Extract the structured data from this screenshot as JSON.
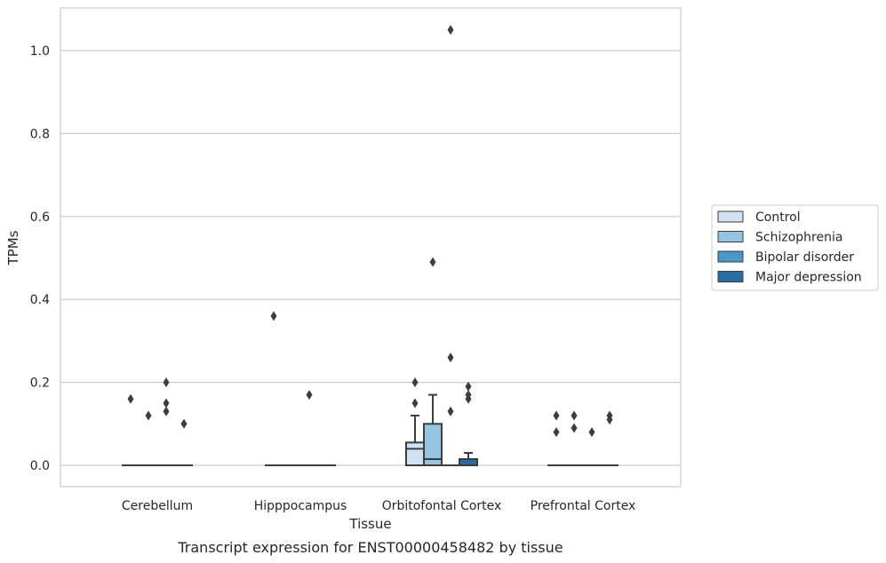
{
  "chart_data": {
    "type": "box",
    "xlabel": "Tissue",
    "ylabel": "TPMs",
    "caption": "Transcript expression for ENST00000458482 by tissue",
    "ylim": [
      -0.05,
      1.1
    ],
    "yticks": [
      0.0,
      0.2,
      0.4,
      0.6,
      0.8,
      1.0
    ],
    "ytick_labels": [
      "0.0",
      "0.2",
      "0.4",
      "0.6",
      "0.8",
      "1.0"
    ],
    "grid": true,
    "legend_position": "right",
    "categories": [
      "Cerebellum",
      "Hipppocampus",
      "Orbitofontal Cortex",
      "Prefrontal Cortex"
    ],
    "series": [
      {
        "name": "Control",
        "color": "#d0e1f2",
        "boxes": [
          {
            "q1": 0.0,
            "median": 0.0,
            "q3": 0.0,
            "whislo": 0.0,
            "whishi": 0.0,
            "fliers": [
              0.16
            ]
          },
          {
            "q1": 0.0,
            "median": 0.0,
            "q3": 0.0,
            "whislo": 0.0,
            "whishi": 0.0,
            "fliers": [
              0.36
            ]
          },
          {
            "q1": 0.0,
            "median": 0.04,
            "q3": 0.055,
            "whislo": 0.0,
            "whishi": 0.12,
            "fliers": [
              0.15,
              0.2
            ]
          },
          {
            "q1": 0.0,
            "median": 0.0,
            "q3": 0.0,
            "whislo": 0.0,
            "whishi": 0.0,
            "fliers": [
              0.08,
              0.12
            ]
          }
        ]
      },
      {
        "name": "Schizophrenia",
        "color": "#94c4df",
        "boxes": [
          {
            "q1": 0.0,
            "median": 0.0,
            "q3": 0.0,
            "whislo": 0.0,
            "whishi": 0.0,
            "fliers": [
              0.12
            ]
          },
          {
            "q1": 0.0,
            "median": 0.0,
            "q3": 0.0,
            "whislo": 0.0,
            "whishi": 0.0,
            "fliers": []
          },
          {
            "q1": 0.0,
            "median": 0.015,
            "q3": 0.1,
            "whislo": 0.0,
            "whishi": 0.17,
            "fliers": [
              0.49
            ]
          },
          {
            "q1": 0.0,
            "median": 0.0,
            "q3": 0.0,
            "whislo": 0.0,
            "whishi": 0.0,
            "fliers": [
              0.09,
              0.12
            ]
          }
        ]
      },
      {
        "name": "Bipolar disorder",
        "color": "#4a98c9",
        "boxes": [
          {
            "q1": 0.0,
            "median": 0.0,
            "q3": 0.0,
            "whislo": 0.0,
            "whishi": 0.0,
            "fliers": [
              0.13,
              0.15,
              0.2
            ]
          },
          {
            "q1": 0.0,
            "median": 0.0,
            "q3": 0.0,
            "whislo": 0.0,
            "whishi": 0.0,
            "fliers": [
              0.17
            ]
          },
          {
            "q1": 0.0,
            "median": 0.0,
            "q3": 0.0,
            "whislo": 0.0,
            "whishi": 0.0,
            "fliers": [
              0.13,
              0.26,
              1.05
            ]
          },
          {
            "q1": 0.0,
            "median": 0.0,
            "q3": 0.0,
            "whislo": 0.0,
            "whishi": 0.0,
            "fliers": [
              0.08
            ]
          }
        ]
      },
      {
        "name": "Major depression",
        "color": "#2b6ba4",
        "boxes": [
          {
            "q1": 0.0,
            "median": 0.0,
            "q3": 0.0,
            "whislo": 0.0,
            "whishi": 0.0,
            "fliers": [
              0.1
            ]
          },
          {
            "q1": 0.0,
            "median": 0.0,
            "q3": 0.0,
            "whislo": 0.0,
            "whishi": 0.0,
            "fliers": []
          },
          {
            "q1": 0.0,
            "median": 0.0,
            "q3": 0.015,
            "whislo": 0.0,
            "whishi": 0.03,
            "fliers": [
              0.16,
              0.17,
              0.19
            ]
          },
          {
            "q1": 0.0,
            "median": 0.0,
            "q3": 0.0,
            "whislo": 0.0,
            "whishi": 0.0,
            "fliers": [
              0.11,
              0.12
            ]
          }
        ]
      }
    ]
  }
}
